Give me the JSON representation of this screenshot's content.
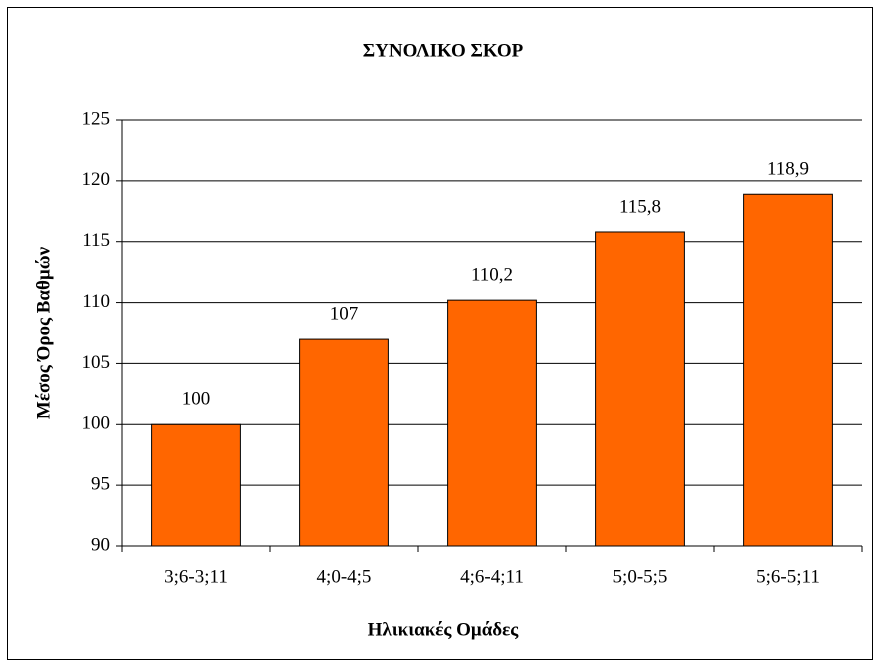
{
  "chart_data": {
    "type": "bar",
    "title": "ΣΥΝΟΛΙΚΟ ΣΚΟΡ",
    "x_label": "Ηλικιακές Ομάδες",
    "y_label": "Μέσος Όρος Βαθμών",
    "categories": [
      "3;6-3;11",
      "4;0-4;5",
      "4;6-4;11",
      "5;0-5;5",
      "5;6-5;11"
    ],
    "values": [
      100,
      107,
      110.2,
      115.8,
      118.9
    ],
    "value_labels": [
      "100",
      "107",
      "110,2",
      "115,8",
      "118,9"
    ],
    "color": "#ff6600",
    "ylim": [
      90,
      125
    ],
    "yticks": [
      90,
      95,
      100,
      105,
      110,
      115,
      120,
      125
    ],
    "grid": true
  }
}
